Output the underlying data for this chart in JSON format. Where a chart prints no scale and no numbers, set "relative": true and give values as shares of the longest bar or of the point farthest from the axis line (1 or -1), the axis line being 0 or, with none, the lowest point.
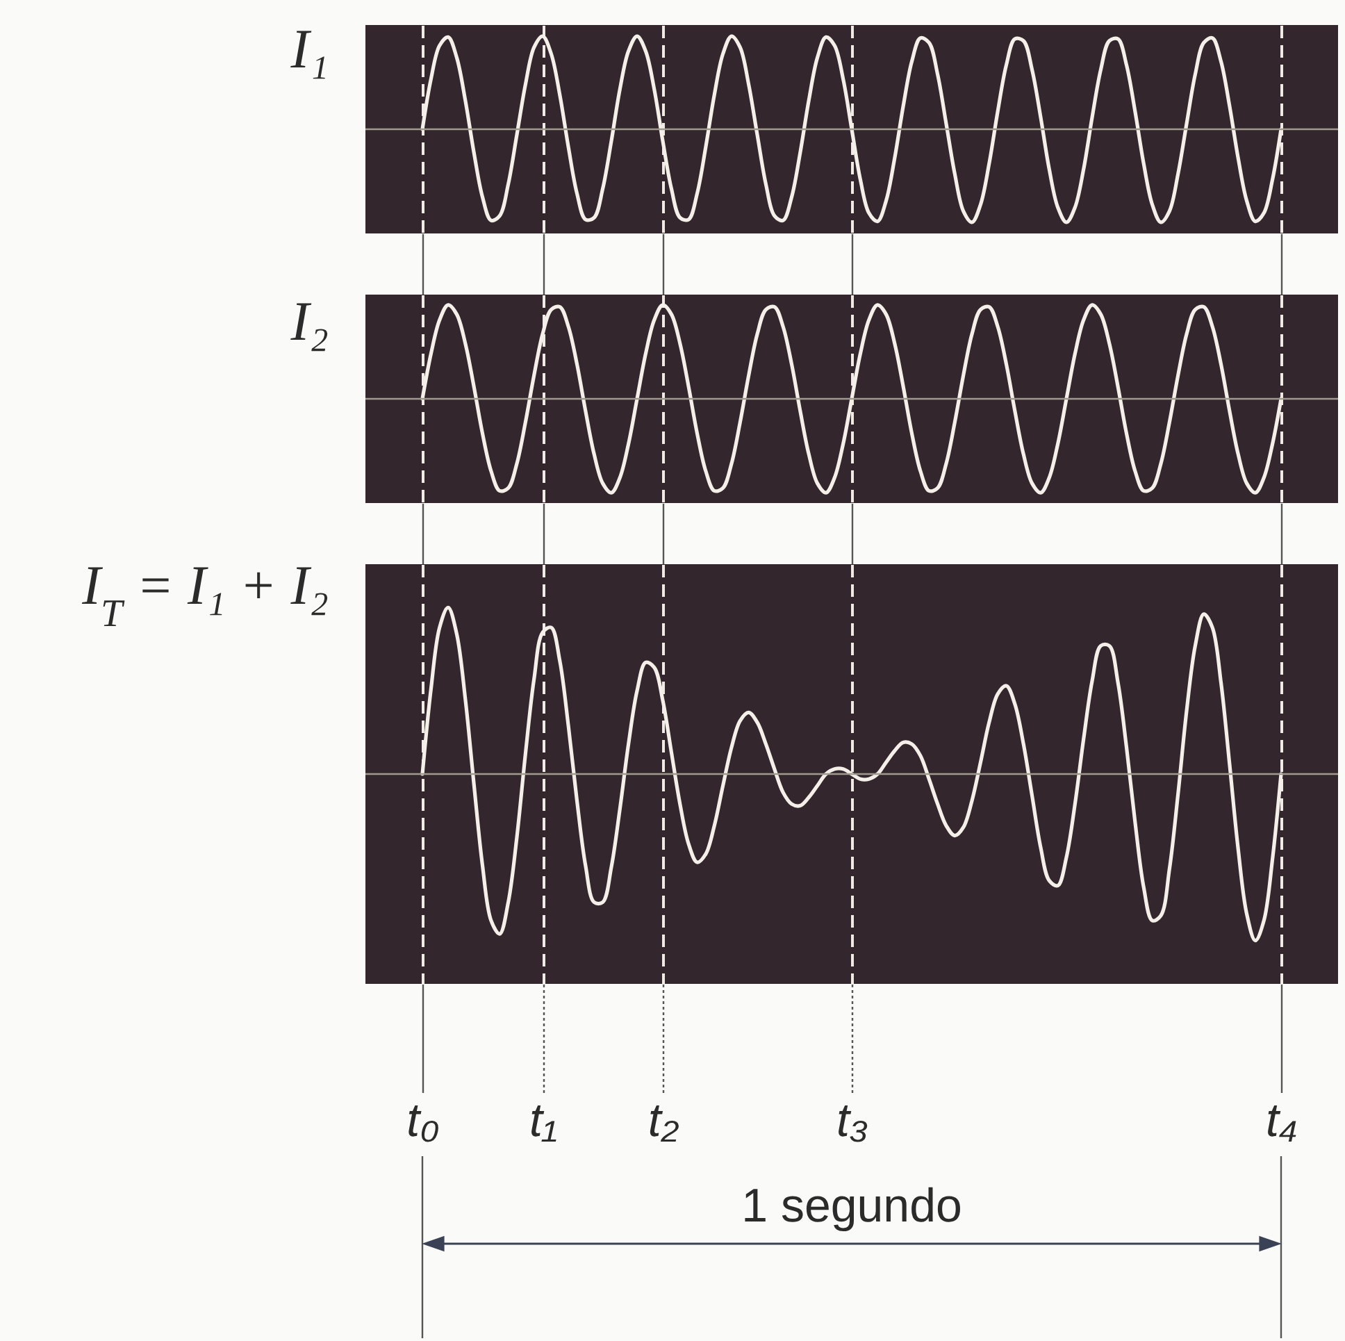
{
  "chart_data": [
    {
      "type": "line",
      "ylabel": "I₁",
      "relative": true,
      "tick_labels": false,
      "grid": "x",
      "categories": [
        null,
        null,
        null,
        null,
        null,
        null,
        null,
        null,
        null,
        null,
        null,
        null,
        null,
        null,
        null,
        null,
        null,
        null,
        null,
        null,
        null,
        null,
        null,
        null,
        null,
        null,
        null,
        null,
        null,
        null,
        null,
        null,
        null,
        null,
        null,
        null,
        null,
        null,
        null,
        null,
        null,
        null,
        null,
        null,
        null,
        null,
        null,
        null,
        null,
        null,
        null,
        null,
        null,
        null,
        null,
        null,
        null,
        null,
        null,
        null,
        null,
        null,
        null,
        null,
        null,
        null,
        null,
        null,
        null,
        null,
        null,
        null,
        null,
        null,
        null,
        null,
        null,
        null,
        null,
        null,
        null,
        null,
        null,
        null,
        null,
        null,
        null,
        null,
        null,
        null,
        null,
        null,
        null,
        null,
        null,
        null,
        null,
        null,
        null,
        null,
        null
      ],
      "ref_lines": [
        {
          "axis": "y",
          "value": 0,
          "color": "#a09a8e"
        }
      ],
      "series": [
        {
          "color": "#f5efe9",
          "values": [
            0,
            0.54,
            0.9,
            0.99,
            0.77,
            0.31,
            -0.25,
            -0.73,
            -0.98,
            -0.93,
            -0.59,
            -0.06,
            0.48,
            0.88,
            1,
            0.81,
            0.37,
            -0.19,
            -0.69,
            -0.97,
            -0.95,
            -0.64,
            -0.13,
            0.43,
            0.84,
            1,
            0.84,
            0.43,
            -0.13,
            -0.64,
            -0.95,
            -0.97,
            -0.69,
            -0.19,
            0.37,
            0.81,
            1,
            0.88,
            0.48,
            -0.06,
            -0.59,
            -0.93,
            -0.98,
            -0.73,
            -0.25,
            0.31,
            0.77,
            0.99,
            0.9,
            0.54,
            0,
            -0.54,
            -0.9,
            -0.99,
            -0.77,
            -0.31,
            0.25,
            0.73,
            0.98,
            0.93,
            0.59,
            0.06,
            -0.48,
            -0.88,
            -1,
            -0.81,
            -0.37,
            0.19,
            0.69,
            0.97,
            0.95,
            0.64,
            0.13,
            -0.43,
            -0.84,
            -1,
            -0.84,
            -0.43,
            0.13,
            0.64,
            0.95,
            0.97,
            0.69,
            0.19,
            -0.37,
            -0.81,
            -1,
            -0.88,
            -0.48,
            0.06,
            0.59,
            0.93,
            0.98,
            0.73,
            0.25,
            -0.31,
            -0.77,
            -0.99,
            -0.9,
            -0.54,
            0
          ]
        }
      ]
    },
    {
      "type": "line",
      "ylabel": "I₂",
      "relative": true,
      "tick_labels": false,
      "grid": "x",
      "categories": [
        null,
        null,
        null,
        null,
        null,
        null,
        null,
        null,
        null,
        null,
        null,
        null,
        null,
        null,
        null,
        null,
        null,
        null,
        null,
        null,
        null,
        null,
        null,
        null,
        null,
        null,
        null,
        null,
        null,
        null,
        null,
        null,
        null,
        null,
        null,
        null,
        null,
        null,
        null,
        null,
        null,
        null,
        null,
        null,
        null,
        null,
        null,
        null,
        null,
        null,
        null,
        null,
        null,
        null,
        null,
        null,
        null,
        null,
        null,
        null,
        null,
        null,
        null,
        null,
        null,
        null,
        null,
        null,
        null,
        null,
        null,
        null,
        null,
        null,
        null,
        null,
        null,
        null,
        null,
        null,
        null,
        null,
        null,
        null,
        null,
        null,
        null,
        null,
        null,
        null,
        null,
        null,
        null,
        null,
        null,
        null,
        null,
        null,
        null,
        null,
        null
      ],
      "ref_lines": [
        {
          "axis": "y",
          "value": 0,
          "color": "#a09a8e"
        }
      ],
      "series": [
        {
          "color": "#f5efe9",
          "values": [
            0,
            0.48,
            0.84,
            1,
            0.9,
            0.59,
            0.13,
            -0.37,
            -0.77,
            -0.98,
            -0.95,
            -0.69,
            -0.25,
            0.25,
            0.69,
            0.95,
            0.98,
            0.77,
            0.37,
            -0.13,
            -0.59,
            -0.9,
            -1,
            -0.84,
            -0.48,
            0,
            0.48,
            0.84,
            1,
            0.9,
            0.59,
            0.13,
            -0.37,
            -0.77,
            -0.98,
            -0.95,
            -0.69,
            -0.25,
            0.25,
            0.69,
            0.95,
            0.98,
            0.77,
            0.37,
            -0.13,
            -0.59,
            -0.9,
            -1,
            -0.84,
            -0.48,
            0,
            0.48,
            0.84,
            1,
            0.9,
            0.59,
            0.13,
            -0.37,
            -0.77,
            -0.98,
            -0.95,
            -0.69,
            -0.25,
            0.25,
            0.69,
            0.95,
            0.98,
            0.77,
            0.37,
            -0.13,
            -0.59,
            -0.9,
            -1,
            -0.84,
            -0.48,
            0,
            0.48,
            0.84,
            1,
            0.9,
            0.59,
            0.13,
            -0.37,
            -0.77,
            -0.98,
            -0.95,
            -0.69,
            -0.25,
            0.25,
            0.69,
            0.95,
            0.98,
            0.77,
            0.37,
            -0.13,
            -0.59,
            -0.9,
            -1,
            -0.84,
            -0.48,
            0
          ]
        }
      ]
    },
    {
      "type": "line",
      "ylabel": "I$_{T}$ = I₁ + I₂",
      "relative": true,
      "tick_labels": "x",
      "grid": "x",
      "categories": [
        "t₀",
        null,
        null,
        null,
        null,
        null,
        null,
        null,
        null,
        null,
        null,
        null,
        null,
        null,
        "t₁",
        null,
        null,
        null,
        null,
        null,
        null,
        null,
        null,
        null,
        null,
        null,
        null,
        null,
        "t₂",
        null,
        null,
        null,
        null,
        null,
        null,
        null,
        null,
        null,
        null,
        null,
        null,
        null,
        null,
        null,
        null,
        null,
        null,
        null,
        null,
        null,
        "t₃",
        null,
        null,
        null,
        null,
        null,
        null,
        null,
        null,
        null,
        null,
        null,
        null,
        null,
        null,
        null,
        null,
        null,
        null,
        null,
        null,
        null,
        null,
        null,
        null,
        null,
        null,
        null,
        null,
        null,
        null,
        null,
        null,
        null,
        null,
        null,
        null,
        null,
        null,
        null,
        null,
        null,
        null,
        null,
        null,
        null,
        null,
        null,
        null,
        null,
        "t₄"
      ],
      "ref_lines": [
        {
          "axis": "y",
          "value": 0,
          "color": "#a09a8e"
        }
      ],
      "series": [
        {
          "color": "#f5efe9",
          "values": [
            0,
            0.51,
            0.88,
            1,
            0.84,
            0.45,
            -0.06,
            -0.55,
            -0.88,
            -0.96,
            -0.77,
            -0.38,
            0.12,
            0.57,
            0.85,
            0.88,
            0.68,
            0.29,
            -0.16,
            -0.55,
            -0.77,
            -0.77,
            -0.56,
            -0.21,
            0.18,
            0.5,
            0.67,
            0.64,
            0.44,
            0.13,
            -0.18,
            -0.42,
            -0.53,
            -0.48,
            -0.31,
            -0.07,
            0.16,
            0.32,
            0.37,
            0.31,
            0.18,
            0.03,
            -0.11,
            -0.18,
            -0.19,
            -0.14,
            -0.07,
            0,
            0.03,
            0.03,
            0,
            -0.03,
            -0.03,
            0,
            0.07,
            0.14,
            0.19,
            0.18,
            0.11,
            -0.03,
            -0.18,
            -0.31,
            -0.37,
            -0.32,
            -0.16,
            0.07,
            0.31,
            0.48,
            0.53,
            0.42,
            0.18,
            -0.13,
            -0.44,
            -0.64,
            -0.67,
            -0.5,
            -0.18,
            0.21,
            0.56,
            0.77,
            0.77,
            0.55,
            0.16,
            -0.29,
            -0.68,
            -0.88,
            -0.85,
            -0.57,
            -0.12,
            0.38,
            0.77,
            0.96,
            0.88,
            0.55,
            0.06,
            -0.45,
            -0.84,
            -1,
            -0.88,
            -0.51,
            0
          ]
        }
      ],
      "annotations": [
        "1 segundo"
      ]
    }
  ]
}
